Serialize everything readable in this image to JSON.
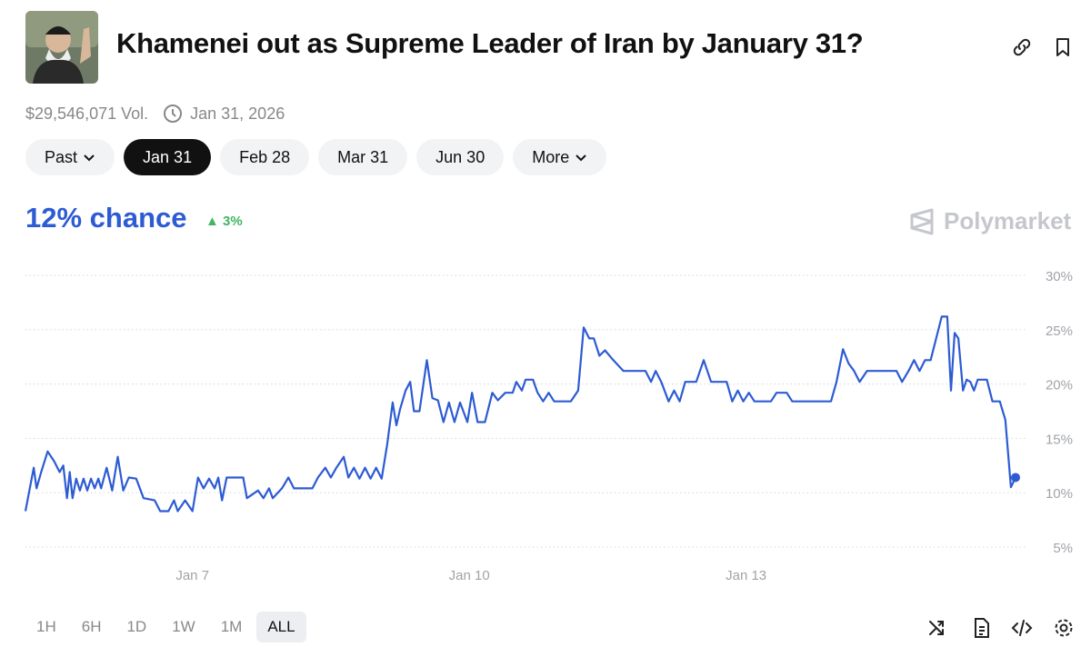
{
  "header": {
    "title": "Khamenei out as Supreme Leader of Iran by January 31?",
    "volume": "$29,546,071 Vol.",
    "end_date": "Jan 31, 2026"
  },
  "tabs": [
    "Past",
    "Jan 31",
    "Feb 28",
    "Mar 31",
    "Jun 30",
    "More"
  ],
  "active_tab": 1,
  "summary": {
    "chance": "12% chance",
    "change": "3%",
    "brand": "Polymarket"
  },
  "ranges": [
    "1H",
    "6H",
    "1D",
    "1W",
    "1M",
    "ALL"
  ],
  "active_range": 5,
  "chart_data": {
    "type": "line",
    "color": "#2d5bd3",
    "x": [
      5.19,
      5.28,
      5.31,
      5.36,
      5.43,
      5.5,
      5.56,
      5.6,
      5.64,
      5.67,
      5.7,
      5.74,
      5.78,
      5.82,
      5.86,
      5.9,
      5.94,
      5.98,
      6.01,
      6.07,
      6.13,
      6.19,
      6.25,
      6.31,
      6.39,
      6.47,
      6.59,
      6.65,
      6.74,
      6.8,
      6.84,
      6.92,
      7.0,
      7.06,
      7.12,
      7.18,
      7.24,
      7.28,
      7.32,
      7.37,
      7.55,
      7.59,
      7.71,
      7.77,
      7.83,
      7.87,
      7.97,
      8.04,
      8.1,
      8.3,
      8.36,
      8.44,
      8.5,
      8.56,
      8.64,
      8.69,
      8.75,
      8.81,
      8.87,
      8.93,
      8.99,
      9.05,
      9.11,
      9.17,
      9.21,
      9.25,
      9.31,
      9.36,
      9.4,
      9.46,
      9.54,
      9.6,
      9.66,
      9.72,
      9.78,
      9.84,
      9.9,
      9.98,
      10.03,
      10.09,
      10.17,
      10.25,
      10.31,
      10.39,
      10.47,
      10.51,
      10.57,
      10.61,
      10.69,
      10.74,
      10.8,
      10.86,
      10.92,
      11.1,
      11.18,
      11.24,
      11.3,
      11.35,
      11.41,
      11.47,
      11.55,
      11.67,
      11.91,
      11.97,
      12.02,
      12.08,
      12.16,
      12.22,
      12.28,
      12.34,
      12.46,
      12.54,
      12.62,
      12.79,
      12.85,
      12.91,
      12.97,
      13.03,
      13.09,
      13.27,
      13.33,
      13.44,
      13.5,
      13.92,
      13.98,
      14.05,
      14.11,
      14.17,
      14.23,
      14.31,
      14.63,
      14.69,
      14.76,
      14.82,
      14.88,
      14.94,
      15.0,
      15.06,
      15.12,
      15.18,
      15.22,
      15.26,
      15.3,
      15.35,
      15.39,
      15.43,
      15.47,
      15.51,
      15.61,
      15.67,
      15.75,
      15.81,
      15.87,
      15.92
    ],
    "values": [
      8.3,
      12.3,
      10.4,
      11.9,
      13.8,
      12.9,
      11.9,
      12.5,
      9.5,
      11.9,
      9.5,
      11.3,
      10.2,
      11.3,
      10.2,
      11.3,
      10.4,
      11.3,
      10.4,
      12.3,
      10.2,
      13.3,
      10.2,
      11.4,
      11.3,
      9.5,
      9.3,
      8.3,
      8.3,
      9.3,
      8.3,
      9.3,
      8.3,
      11.4,
      10.4,
      11.3,
      10.4,
      11.4,
      9.3,
      11.4,
      11.4,
      9.5,
      10.2,
      9.5,
      10.4,
      9.5,
      10.4,
      11.4,
      10.4,
      10.4,
      11.4,
      12.3,
      11.4,
      12.3,
      13.3,
      11.4,
      12.3,
      11.3,
      12.3,
      11.3,
      12.3,
      11.3,
      14.4,
      18.3,
      16.2,
      17.7,
      19.4,
      20.2,
      17.5,
      17.5,
      22.2,
      18.7,
      18.5,
      16.5,
      18.3,
      16.5,
      18.3,
      16.5,
      19.2,
      16.5,
      16.5,
      19.2,
      18.5,
      19.2,
      19.2,
      20.2,
      19.4,
      20.4,
      20.4,
      19.2,
      18.4,
      19.2,
      18.4,
      18.4,
      19.4,
      25.2,
      24.2,
      24.2,
      22.6,
      23.1,
      22.3,
      21.2,
      21.2,
      20.2,
      21.2,
      20.2,
      18.4,
      19.4,
      18.4,
      20.2,
      20.2,
      22.2,
      20.2,
      20.2,
      18.4,
      19.4,
      18.4,
      19.2,
      18.4,
      18.4,
      19.2,
      19.2,
      18.4,
      18.4,
      20.2,
      23.2,
      21.9,
      21.2,
      20.2,
      21.2,
      21.2,
      20.2,
      21.2,
      22.2,
      21.2,
      22.2,
      22.2,
      24.2,
      26.2,
      26.2,
      19.4,
      24.7,
      24.2,
      19.4,
      20.4,
      20.2,
      19.4,
      20.4,
      20.4,
      18.4,
      18.4,
      16.7,
      10.5,
      11.4
    ],
    "xlim": [
      5.19,
      15.92
    ],
    "xticks": [
      {
        "value": 7,
        "label": "Jan 7"
      },
      {
        "value": 10,
        "label": "Jan 10"
      },
      {
        "value": 13,
        "label": "Jan 13"
      }
    ],
    "ylim": [
      5,
      30
    ],
    "yticks": [
      {
        "value": 5,
        "label": "5%"
      },
      {
        "value": 10,
        "label": "10%"
      },
      {
        "value": 15,
        "label": "15%"
      },
      {
        "value": 20,
        "label": "20%"
      },
      {
        "value": 25,
        "label": "25%"
      },
      {
        "value": 30,
        "label": "30%"
      }
    ],
    "grid": true
  }
}
